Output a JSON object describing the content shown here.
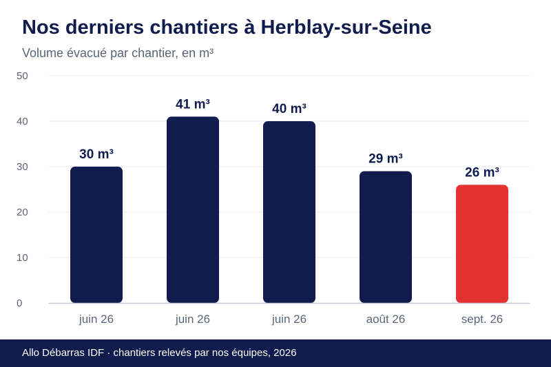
{
  "title": "Nos derniers chantiers à Herblay-sur-Seine",
  "subtitle": "Volume évacué par chantier, en m³",
  "footer": "Allo Débarras IDF · chantiers relevés par nos équipes, 2026",
  "chart_data": {
    "type": "bar",
    "categories": [
      "juin 26",
      "juin 26",
      "juin 26",
      "août 26",
      "sept. 26"
    ],
    "values": [
      30,
      41,
      40,
      29,
      26
    ],
    "value_labels": [
      "30 m³",
      "41 m³",
      "40 m³",
      "29 m³",
      "26 m³"
    ],
    "y_ticks": [
      "0",
      "10",
      "20",
      "30",
      "40",
      "50"
    ],
    "ylim": [
      0,
      50
    ],
    "grid": true,
    "colors": {
      "bar": "#0f1c4d",
      "highlight": "#e3322f",
      "highlight_index": 4
    }
  }
}
